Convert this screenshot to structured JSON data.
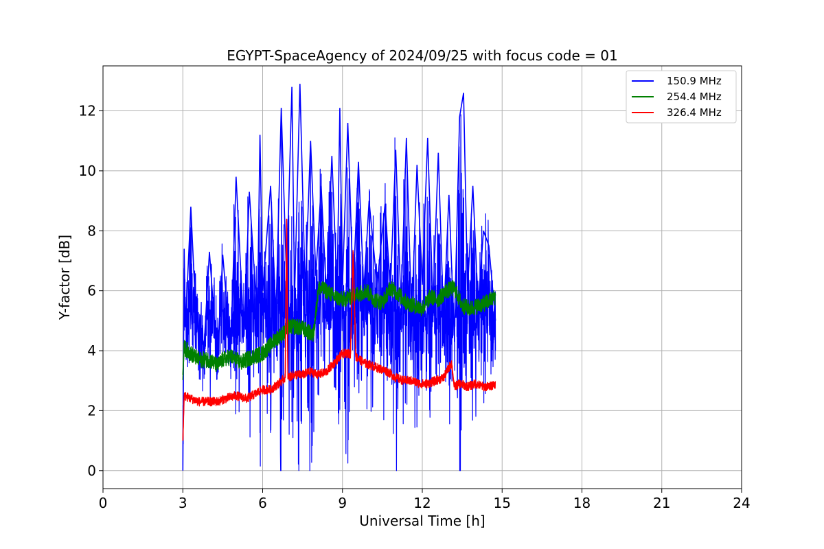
{
  "chart_data": {
    "type": "line",
    "title": "EGYPT-SpaceAgency of 2024/09/25 with focus code = 01",
    "xlabel": "Universal Time [h]",
    "ylabel": "Y-factor [dB]",
    "xlim": [
      0,
      24
    ],
    "ylim": [
      -0.6,
      13.5
    ],
    "xticks": [
      0,
      3,
      6,
      9,
      12,
      15,
      18,
      21,
      24
    ],
    "yticks": [
      0,
      2,
      4,
      6,
      8,
      10,
      12
    ],
    "grid": true,
    "legend_position": "top-right",
    "series": [
      {
        "name": "150.9 MHz",
        "color": "#0000ff",
        "x": [
          3.0,
          3.05,
          3.1,
          3.3,
          3.5,
          3.8,
          4.0,
          4.3,
          4.5,
          4.8,
          5.0,
          5.3,
          5.5,
          5.8,
          5.9,
          6.0,
          6.3,
          6.5,
          6.7,
          6.9,
          7.1,
          7.2,
          7.4,
          7.6,
          7.8,
          8.0,
          8.2,
          8.4,
          8.6,
          8.8,
          8.9,
          9.0,
          9.2,
          9.4,
          9.6,
          9.8,
          10.0,
          10.3,
          10.6,
          10.8,
          11.0,
          11.2,
          11.4,
          11.6,
          11.8,
          12.0,
          12.2,
          12.4,
          12.6,
          12.8,
          13.0,
          13.2,
          13.4,
          13.55,
          13.7,
          13.9,
          14.1,
          14.3,
          14.5,
          14.75
        ],
        "y": [
          0.0,
          7.4,
          4.8,
          8.8,
          5.0,
          4.2,
          7.3,
          3.6,
          7.2,
          4.0,
          9.8,
          4.5,
          9.3,
          5.0,
          11.2,
          6.0,
          9.5,
          5.2,
          12.1,
          6.3,
          12.8,
          5.8,
          12.9,
          6.0,
          11.0,
          6.5,
          9.5,
          5.8,
          10.5,
          6.0,
          12.1,
          6.2,
          11.6,
          6.0,
          10.3,
          6.0,
          9.0,
          6.2,
          8.9,
          6.0,
          10.7,
          5.5,
          11.1,
          5.0,
          10.2,
          6.2,
          11.1,
          5.5,
          10.6,
          5.0,
          9.2,
          4.5,
          11.8,
          12.6,
          6.0,
          9.5,
          5.5,
          8.0,
          7.5,
          5.0
        ],
        "noise": 1.8
      },
      {
        "name": "254.4 MHz",
        "color": "#008000",
        "x": [
          3.0,
          3.05,
          3.3,
          3.6,
          4.0,
          4.3,
          4.5,
          4.8,
          5.2,
          5.6,
          6.0,
          6.3,
          6.5,
          6.8,
          7.0,
          7.3,
          7.6,
          7.9,
          8.1,
          8.4,
          8.7,
          9.0,
          9.3,
          9.6,
          9.9,
          10.2,
          10.5,
          10.8,
          11.1,
          11.4,
          11.7,
          12.0,
          12.3,
          12.6,
          12.9,
          13.2,
          13.5,
          13.8,
          14.1,
          14.4,
          14.75
        ],
        "y": [
          3.2,
          4.1,
          3.9,
          3.7,
          3.7,
          3.5,
          3.7,
          3.8,
          3.6,
          3.8,
          3.9,
          4.2,
          4.4,
          4.6,
          4.8,
          4.8,
          4.7,
          4.5,
          6.1,
          6.0,
          5.8,
          5.7,
          5.8,
          5.9,
          6.0,
          5.7,
          5.6,
          6.1,
          5.9,
          5.6,
          5.5,
          5.4,
          5.8,
          5.7,
          6.0,
          6.1,
          5.5,
          5.4,
          5.5,
          5.6,
          5.8
        ],
        "noise": 0.45
      },
      {
        "name": "326.4 MHz",
        "color": "#ff0000",
        "x": [
          3.0,
          3.05,
          3.3,
          3.6,
          4.0,
          4.3,
          4.6,
          5.0,
          5.4,
          5.8,
          6.0,
          6.3,
          6.6,
          6.85,
          6.9,
          6.95,
          7.2,
          7.5,
          7.8,
          8.1,
          8.4,
          8.7,
          9.0,
          9.3,
          9.4,
          9.5,
          9.8,
          10.1,
          10.4,
          10.7,
          11.0,
          11.3,
          11.6,
          11.9,
          12.2,
          12.5,
          12.8,
          13.1,
          13.2,
          13.4,
          13.7,
          14.0,
          14.3,
          14.5,
          14.75
        ],
        "y": [
          1.0,
          2.5,
          2.4,
          2.3,
          2.3,
          2.3,
          2.4,
          2.5,
          2.4,
          2.6,
          2.7,
          2.7,
          2.9,
          3.1,
          8.4,
          3.1,
          3.2,
          3.2,
          3.3,
          3.2,
          3.3,
          3.6,
          3.9,
          3.9,
          7.3,
          3.8,
          3.6,
          3.5,
          3.4,
          3.3,
          3.1,
          3.0,
          3.0,
          2.9,
          2.9,
          3.0,
          3.1,
          3.6,
          2.8,
          2.9,
          2.8,
          2.9,
          2.8,
          2.8,
          2.9
        ],
        "noise": 0.25
      }
    ]
  }
}
